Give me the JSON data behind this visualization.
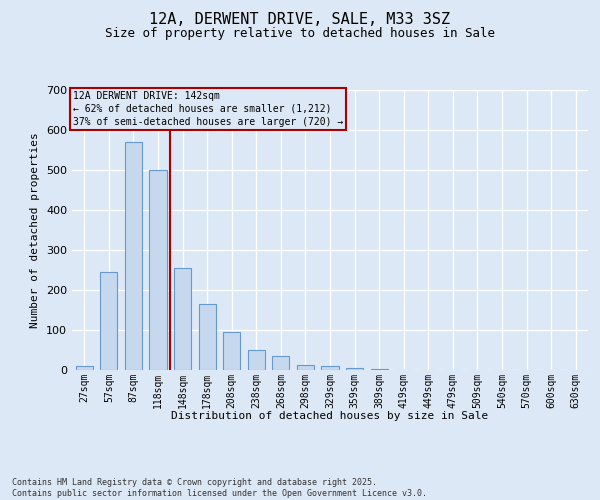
{
  "title1": "12A, DERWENT DRIVE, SALE, M33 3SZ",
  "title2": "Size of property relative to detached houses in Sale",
  "xlabel": "Distribution of detached houses by size in Sale",
  "ylabel": "Number of detached properties",
  "categories": [
    "27sqm",
    "57sqm",
    "87sqm",
    "118sqm",
    "148sqm",
    "178sqm",
    "208sqm",
    "238sqm",
    "268sqm",
    "298sqm",
    "329sqm",
    "359sqm",
    "389sqm",
    "419sqm",
    "449sqm",
    "479sqm",
    "509sqm",
    "540sqm",
    "570sqm",
    "600sqm",
    "630sqm"
  ],
  "values": [
    10,
    245,
    570,
    500,
    255,
    165,
    95,
    50,
    35,
    13,
    9,
    5,
    2,
    0,
    0,
    0,
    0,
    0,
    0,
    0,
    0
  ],
  "bar_color": "#c5d8ee",
  "bar_edge_color": "#6699cc",
  "annotation_box_text": "12A DERWENT DRIVE: 142sqm\n← 62% of detached houses are smaller (1,212)\n37% of semi-detached houses are larger (720) →",
  "footer_text": "Contains HM Land Registry data © Crown copyright and database right 2025.\nContains public sector information licensed under the Open Government Licence v3.0.",
  "bg_color": "#dce8f5",
  "grid_color": "#ffffff",
  "vline_index": 4,
  "bar_width": 0.7,
  "ylim": [
    0,
    700
  ],
  "yticks": [
    0,
    100,
    200,
    300,
    400,
    500,
    600,
    700
  ],
  "red_color": "#aa0000",
  "title1_fontsize": 11,
  "title2_fontsize": 9,
  "tick_fontsize": 7,
  "label_fontsize": 8,
  "anno_fontsize": 7,
  "footer_fontsize": 6
}
